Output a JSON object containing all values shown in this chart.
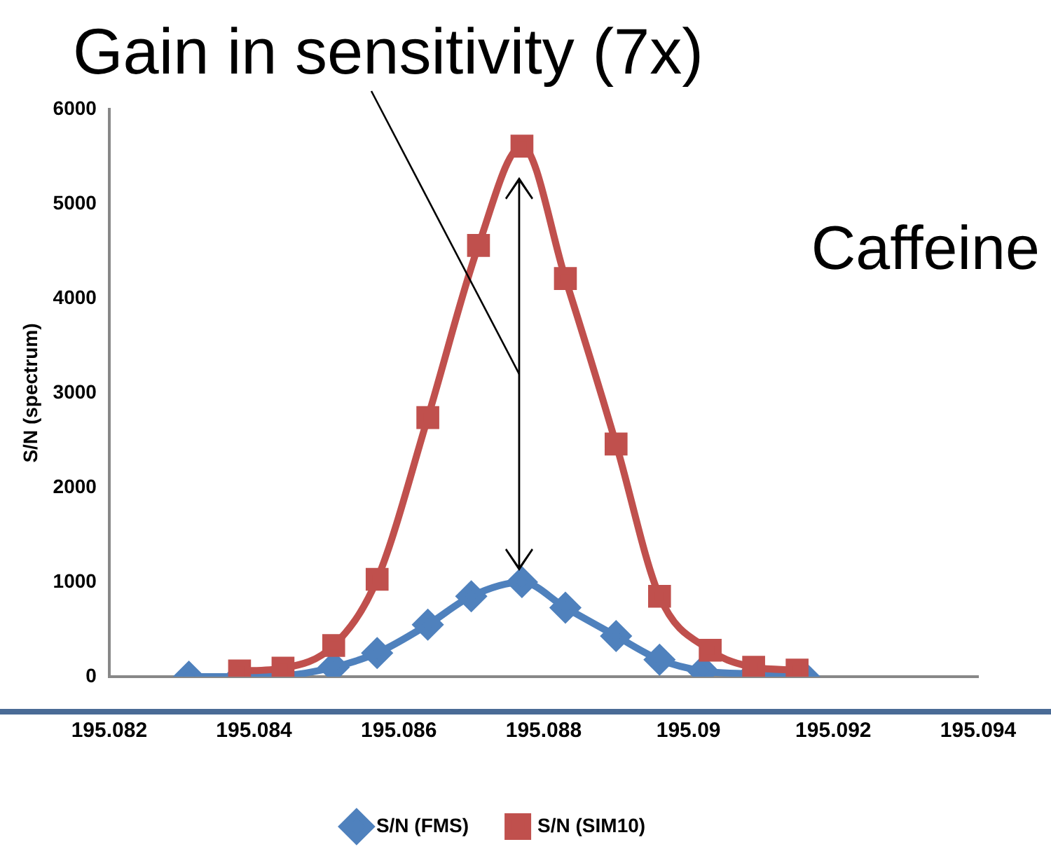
{
  "chart_data": {
    "type": "line",
    "title": "Gain in sensitivity (7x)",
    "ylabel": "S/N (spectrum)",
    "annotations": [
      "Caffeine"
    ],
    "xlim": [
      195.082,
      195.094
    ],
    "xticks": [
      195.082,
      195.084,
      195.086,
      195.088,
      195.09,
      195.092,
      195.094
    ],
    "ylim": [
      0,
      6000
    ],
    "yticks": [
      0,
      1000,
      2000,
      3000,
      4000,
      5000,
      6000
    ],
    "grid": false,
    "legend": "bottom",
    "series": [
      {
        "name": "S/N (FMS)",
        "color": "#4f81bd",
        "marker": "diamond",
        "x": [
          195.0831,
          195.0838,
          195.0844,
          195.0851,
          195.0857,
          195.0864,
          195.087,
          195.0877,
          195.0883,
          195.089,
          195.0896,
          195.0902,
          195.0909,
          195.0916
        ],
        "values": [
          0,
          0,
          10,
          100,
          250,
          550,
          850,
          1000,
          730,
          430,
          180,
          60,
          30,
          0
        ]
      },
      {
        "name": "S/N (SIM10)",
        "color": "#c0504d",
        "marker": "square",
        "x": [
          195.0838,
          195.0844,
          195.0851,
          195.0857,
          195.0864,
          195.0871,
          195.0877,
          195.0883,
          195.089,
          195.0896,
          195.0903,
          195.0909,
          195.0915
        ],
        "values": [
          60,
          90,
          330,
          1030,
          2740,
          4560,
          5610,
          4210,
          2460,
          850,
          280,
          100,
          70
        ]
      }
    ]
  }
}
